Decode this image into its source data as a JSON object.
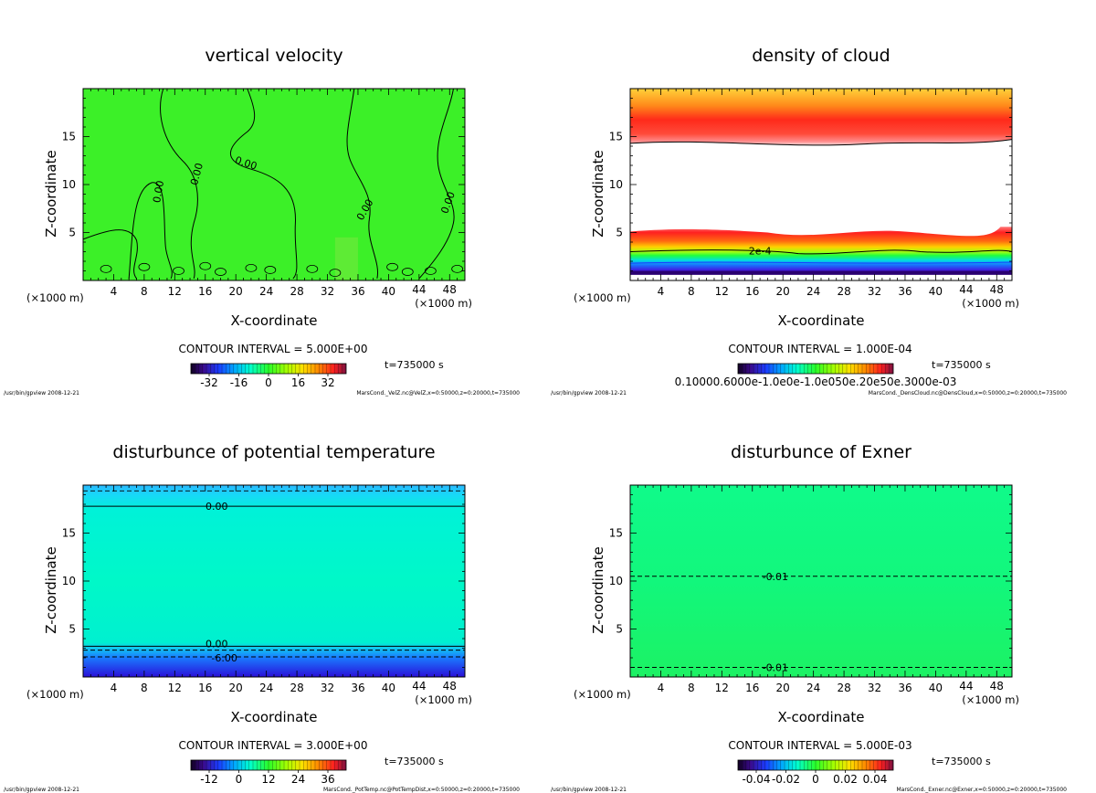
{
  "panels": [
    {
      "id": "velz",
      "title": "vertical velocity",
      "xlabel": "X-coordinate",
      "ylabel": "Z-coordinate",
      "x_unit": "(×1000 m)",
      "contour_interval": "CONTOUR INTERVAL = 5.000E+00",
      "time": "t=735000 s",
      "colorbar_ticks": [
        "-32",
        "-16",
        "0",
        "16",
        "32"
      ],
      "contour_labels": [
        "0.00",
        "0.00",
        "0.00",
        "0.00",
        "0.00"
      ],
      "footer_left": "/usr/bin/gpview  2008-12-21",
      "footer_right": "MarsCond._VelZ.nc@VelZ,x=0:50000,z=0:20000,t=735000"
    },
    {
      "id": "denscloud",
      "title": "density of cloud",
      "xlabel": "X-coordinate",
      "ylabel": "Z-coordinate",
      "x_unit": "(×1000 m)",
      "contour_interval": "CONTOUR INTERVAL = 1.000E-04",
      "time": "t=735000 s",
      "colorbar_ticks": [
        "0.10000.6000e-1.0e0e-1.0e050e.20e50e.3000e-03"
      ],
      "contour_labels": [
        "2e-4"
      ],
      "footer_left": "/usr/bin/gpview  2008-12-21",
      "footer_right": "MarsCond._DensCloud.nc@DensCloud,x=0:50000,z=0:20000,t=735000"
    },
    {
      "id": "pottemp",
      "title": "disturbunce of potential temperature",
      "xlabel": "X-coordinate",
      "ylabel": "Z-coordinate",
      "x_unit": "(×1000 m)",
      "contour_interval": "CONTOUR INTERVAL = 3.000E+00",
      "time": "t=735000 s",
      "colorbar_ticks": [
        "-12",
        "0",
        "12",
        "24",
        "36"
      ],
      "contour_labels": [
        "0.00",
        "0.00",
        "-6.00"
      ],
      "footer_left": "/usr/bin/gpview  2008-12-21",
      "footer_right": "MarsCond._PotTemp.nc@PotTempDist,x=0:50000,z=0:20000,t=735000"
    },
    {
      "id": "exner",
      "title": "disturbunce of Exner",
      "xlabel": "X-coordinate",
      "ylabel": "Z-coordinate",
      "x_unit": "(×1000 m)",
      "contour_interval": "CONTOUR INTERVAL = 5.000E-03",
      "time": "t=735000 s",
      "colorbar_ticks": [
        "-0.04",
        "-0.02",
        "0",
        "0.02",
        "0.04"
      ],
      "contour_labels": [
        "-0.01",
        "-0.01"
      ],
      "footer_left": "/usr/bin/gpview  2008-12-21",
      "footer_right": "MarsCond._Exner.nc@Exner,x=0:50000,z=0:20000,t=735000"
    }
  ],
  "chart_data": [
    {
      "type": "heatmap",
      "title": "vertical velocity",
      "xlabel": "X-coordinate (×1000 m)",
      "ylabel": "Z-coordinate",
      "xlim": [
        0,
        50
      ],
      "ylim": [
        0,
        20
      ],
      "xticks": [
        4,
        8,
        12,
        16,
        20,
        24,
        28,
        32,
        36,
        40,
        44,
        48
      ],
      "yticks": [
        5,
        10,
        15
      ],
      "contour_interval": 5.0,
      "colorbar_range": [
        -36,
        36
      ],
      "field_value_typical": 0,
      "contour_lines": [
        {
          "level": 0.0,
          "x_at_top": [
            10.5,
            21.5,
            35.5,
            48.5
          ]
        }
      ],
      "time_s": 735000
    },
    {
      "type": "heatmap",
      "title": "density of cloud",
      "xlabel": "X-coordinate (×1000 m)",
      "ylabel": "Z-coordinate",
      "xlim": [
        0,
        50
      ],
      "ylim": [
        0,
        20
      ],
      "xticks": [
        4,
        8,
        12,
        16,
        20,
        24,
        28,
        32,
        36,
        40,
        44,
        48
      ],
      "yticks": [
        5,
        10,
        15
      ],
      "contour_interval": 0.0001,
      "colorbar_range": [
        0.0001,
        0.0003
      ],
      "layers": [
        {
          "name": "upper cloud",
          "z_bottom": 14.3,
          "z_top": 20,
          "z_peak": 16.5
        },
        {
          "name": "lower cloud",
          "z_bottom": 1.0,
          "z_top": 5.3,
          "z_peak": 4.0
        }
      ],
      "contour_lines": [
        {
          "level": 0.0002,
          "z": 3.0
        }
      ],
      "time_s": 735000
    },
    {
      "type": "heatmap",
      "title": "disturbunce of potential temperature",
      "xlabel": "X-coordinate (×1000 m)",
      "ylabel": "Z-coordinate",
      "xlim": [
        0,
        50
      ],
      "ylim": [
        0,
        20
      ],
      "xticks": [
        4,
        8,
        12,
        16,
        20,
        24,
        28,
        32,
        36,
        40,
        44,
        48
      ],
      "yticks": [
        5,
        10,
        15
      ],
      "contour_interval": 3.0,
      "colorbar_range": [
        -15,
        39
      ],
      "contour_lines": [
        {
          "level": 0.0,
          "z": 17.8
        },
        {
          "level": 0.0,
          "z": 3.2
        },
        {
          "level": -3.0,
          "z": 2.8
        },
        {
          "level": -6.0,
          "z": 2.1
        }
      ],
      "time_s": 735000
    },
    {
      "type": "heatmap",
      "title": "disturbunce of Exner",
      "xlabel": "X-coordinate (×1000 m)",
      "ylabel": "Z-coordinate",
      "xlim": [
        0,
        50
      ],
      "ylim": [
        0,
        20
      ],
      "xticks": [
        4,
        8,
        12,
        16,
        20,
        24,
        28,
        32,
        36,
        40,
        44,
        48
      ],
      "yticks": [
        5,
        10,
        15
      ],
      "contour_interval": 0.005,
      "colorbar_range": [
        -0.05,
        0.05
      ],
      "contour_lines": [
        {
          "level": -0.01,
          "z": 10.5
        },
        {
          "level": -0.01,
          "z": 1.0
        }
      ],
      "time_s": 735000
    }
  ]
}
